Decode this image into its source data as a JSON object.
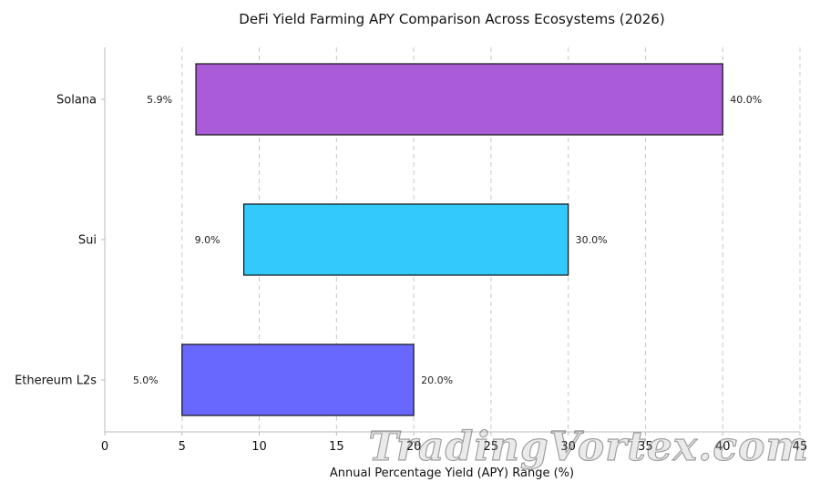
{
  "chart_data": {
    "type": "bar",
    "orientation": "horizontal",
    "title": "DeFi Yield Farming APY Comparison Across Ecosystems (2026)",
    "xlabel": "Annual Percentage Yield (APY) Range (%)",
    "ylabel": "",
    "xlim": [
      0,
      45
    ],
    "xticks": [
      0,
      5,
      10,
      15,
      20,
      25,
      30,
      35,
      40,
      45
    ],
    "grid": "x-dashed",
    "categories": [
      "Solana",
      "Sui",
      "Ethereum L2s"
    ],
    "bars": [
      {
        "category": "Solana",
        "min": 5.9,
        "max": 40.0,
        "min_label": "5.9%",
        "max_label": "40.0%",
        "color": "#aa5cd8"
      },
      {
        "category": "Sui",
        "min": 9.0,
        "max": 30.0,
        "min_label": "9.0%",
        "max_label": "30.0%",
        "color": "#33c9fd"
      },
      {
        "category": "Ethereum L2s",
        "min": 5.0,
        "max": 20.0,
        "min_label": "5.0%",
        "max_label": "20.0%",
        "color": "#6868ff"
      }
    ]
  },
  "watermark": {
    "text": "TradingVortex.com"
  }
}
